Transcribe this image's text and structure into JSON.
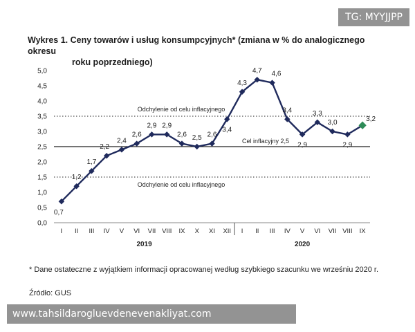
{
  "overlay": {
    "tag": "TG: MYYJJPP",
    "watermark": "www.tahsildarogluevdenevenakliyat.com"
  },
  "chart_data": {
    "type": "line",
    "title_line1": "Wykres 1. Ceny towarów i usług konsumpcyjnych* (zmiana w % do analogicznego okresu",
    "title_line2": "roku poprzedniego)",
    "categories": [
      "I",
      "II",
      "III",
      "IV",
      "V",
      "VI",
      "VII",
      "VIII",
      "IX",
      "X",
      "XI",
      "XII",
      "I",
      "II",
      "III",
      "IV",
      "V",
      "VI",
      "VII",
      "VIII",
      "IX"
    ],
    "years": [
      {
        "label": "2019",
        "from": 0,
        "to": 11
      },
      {
        "label": "2020",
        "from": 12,
        "to": 20
      }
    ],
    "values": [
      0.7,
      1.2,
      1.7,
      2.2,
      2.4,
      2.6,
      2.9,
      2.9,
      2.6,
      2.5,
      2.6,
      3.4,
      4.3,
      4.7,
      4.6,
      3.4,
      2.9,
      3.3,
      3.0,
      2.9,
      3.2
    ],
    "value_labels": [
      "0,7",
      "1,2",
      "1,7",
      "2,2",
      "2,4",
      "2,6",
      "2,9",
      "2,9",
      "2,6",
      "2,5",
      "2,6",
      "3,4",
      "4,3",
      "4,7",
      "4,6",
      "3,4",
      "2,9",
      "3,3",
      "3,0",
      "2,9",
      "3,2"
    ],
    "preliminary_index": 20,
    "ylim": [
      0,
      5
    ],
    "yticks": [
      0,
      0.5,
      1.0,
      1.5,
      2.0,
      2.5,
      3.0,
      3.5,
      4.0,
      4.5,
      5.0
    ],
    "ytick_labels": [
      "0,0",
      "0,5",
      "1,0",
      "1,5",
      "2,0",
      "2,5",
      "3,0",
      "3,5",
      "4,0",
      "4,5",
      "5,0"
    ],
    "reference_lines": [
      {
        "value": 3.5,
        "style": "dotted",
        "label": "Odchylenie od celu inflacyjnego"
      },
      {
        "value": 2.5,
        "style": "solid",
        "label": "Cel inflacyjny 2,5"
      },
      {
        "value": 1.5,
        "style": "dotted",
        "label": "Odchylenie od celu inflacyjnego"
      }
    ],
    "line_color": "#1f2a5c",
    "marker_color": "#1f2a5c",
    "preliminary_marker_color": "#2e8b57",
    "grid": false
  },
  "footnote": "* Dane ostateczne z wyjątkiem informacji opracowanej według szybkiego szacunku we wrześniu 2020 r.",
  "source": "Źródło: GUS"
}
